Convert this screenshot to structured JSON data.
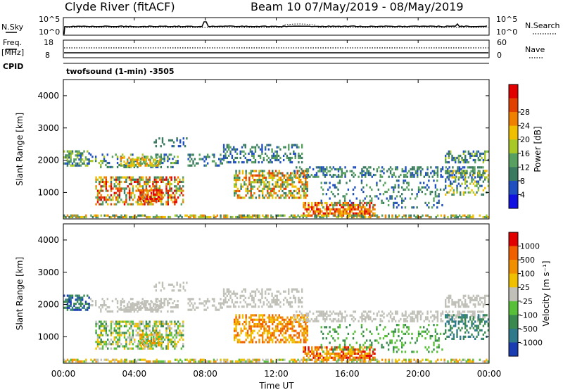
{
  "header": {
    "title_left": "Clyde River (fitACF)",
    "title_right": "Beam 10 07/May/2019 - 08/May/2019"
  },
  "nsky_panel": {
    "left_label": "N.Sky",
    "ticks_left": [
      "10^5",
      "10^0"
    ],
    "ticks_right": [
      "10^5",
      "10^0"
    ],
    "right_label": "N.Search"
  },
  "freq_panel": {
    "left_label_1": "Freq.",
    "left_label_2": "[MHz]",
    "ticks_left": [
      "18",
      "8"
    ],
    "ticks_right": [
      "60",
      "0"
    ],
    "right_label": "Nave",
    "cpid_label": "CPID",
    "cpid_value": "twofsound (1-min) -3505"
  },
  "chart_data": [
    {
      "type": "heatmap",
      "title": "Power",
      "ylabel": "Slant Range [km]",
      "xlabel": "Time UT",
      "y_ticks": [
        "1000",
        "2000",
        "3000",
        "4000"
      ],
      "x_ticks": [
        "00:00",
        "04:00",
        "08:00",
        "12:00",
        "16:00",
        "20:00",
        "00:00"
      ],
      "ylim": [
        180,
        4500
      ],
      "colorbar_label": "Power [dB]",
      "colorbar_ticks": [
        "4",
        "8",
        "12",
        "16",
        "20",
        "24",
        "28"
      ],
      "colorbar_colors": [
        "#1010e0",
        "#2050c0",
        "#3a7a60",
        "#58a060",
        "#a8c828",
        "#f0c000",
        "#f08000",
        "#e04000",
        "#e00000"
      ]
    },
    {
      "type": "heatmap",
      "title": "Velocity",
      "ylabel": "Slant Range [km]",
      "xlabel": "Time UT",
      "y_ticks": [
        "1000",
        "2000",
        "3000",
        "4000"
      ],
      "x_ticks": [
        "00:00",
        "04:00",
        "08:00",
        "12:00",
        "16:00",
        "20:00",
        "00:00"
      ],
      "ylim": [
        180,
        4500
      ],
      "colorbar_label": "Velocity [m s⁻¹]",
      "colorbar_ticks": [
        "1000",
        "500",
        "100",
        "25",
        "-25",
        "-100",
        "-500",
        "-1000"
      ],
      "colorbar_colors": [
        "#1a3cb0",
        "#2e7a8a",
        "#3a8a50",
        "#58c038",
        "#c0c0b8",
        "#f0c000",
        "#f09000",
        "#f06000",
        "#e00000"
      ]
    }
  ],
  "xaxis": {
    "label": "Time UT"
  }
}
